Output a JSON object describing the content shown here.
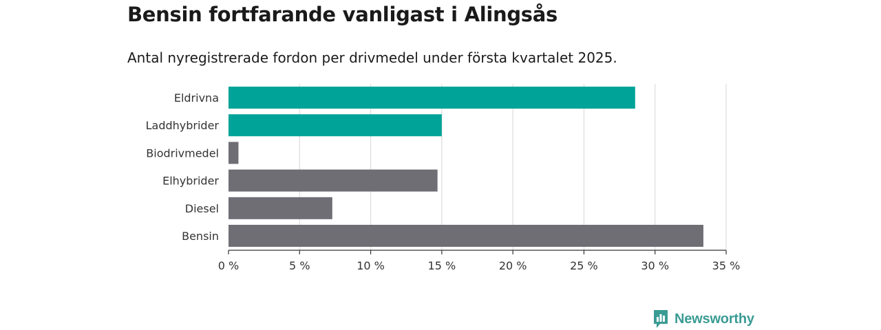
{
  "header": {
    "title": "Bensin fortfarande vanligast i Alingsås",
    "subtitle": "Antal nyregistrerade fordon per drivmedel under första kvartalet 2025."
  },
  "brand": {
    "name": "Newsworthy",
    "icon": "newsworthy-logo-icon",
    "color": "#3a9b94"
  },
  "chart_data": {
    "type": "bar",
    "orientation": "horizontal",
    "categories": [
      "Eldrivna",
      "Laddhybrider",
      "Biodrivmedel",
      "Elhybrider",
      "Diesel",
      "Bensin"
    ],
    "values": [
      28.6,
      15.0,
      0.7,
      14.7,
      7.3,
      33.4
    ],
    "colors": [
      "#00a398",
      "#00a398",
      "#706e75",
      "#706e75",
      "#706e75",
      "#706e75"
    ],
    "xlim": [
      0,
      35
    ],
    "x_ticks": [
      0,
      5,
      10,
      15,
      20,
      25,
      30,
      35
    ],
    "tick_suffix": " %",
    "grid": true,
    "xlabel": "",
    "ylabel": ""
  }
}
